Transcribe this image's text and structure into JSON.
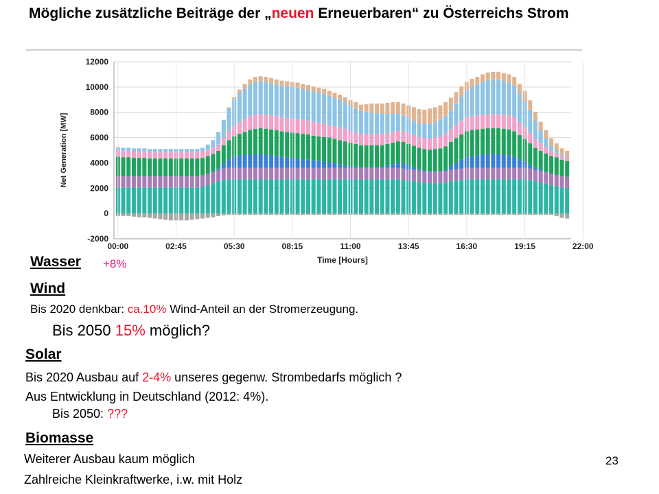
{
  "slide": {
    "title_parts": [
      "Mögliche zusätzliche Beiträge der „",
      "neuen",
      " Erneuerbaren“ zu Österreichs Strom"
    ],
    "page_number": "23"
  },
  "sections": {
    "wasser": {
      "heading": "Wasser",
      "note": "+8%"
    },
    "wind": {
      "heading": "Wind",
      "line1": [
        "Bis 2020 denkbar: ",
        "ca.10%",
        " Wind-Anteil an der Stromerzeugung."
      ],
      "line2": [
        "Bis 2050 ",
        "15%",
        " möglich?"
      ]
    },
    "solar": {
      "heading": "Solar",
      "line1": [
        "Bis 2020 Ausbau auf ",
        "2-4%",
        " unseres gegenw.  Strombedarfs möglich ?"
      ],
      "line2": "Aus Entwicklung in Deutschland (2012: 4%).",
      "line3": [
        "Bis 2050: ",
        "???"
      ]
    },
    "biomasse": {
      "heading": "Biomasse",
      "line1": "Weiterer Ausbau kaum möglich",
      "line2": "Zahlreiche Kleinkraftwerke, i.w. mit Holz"
    }
  },
  "colors": {
    "accent_red": "#e8132c",
    "accent_pink": "#e8137a"
  },
  "chart_data": {
    "type": "bar",
    "stacked": true,
    "xlabel": "Time [Hours]",
    "ylabel": "Net Generation [MW]",
    "ylim": [
      -2000,
      12000
    ],
    "yticks": [
      -2000,
      0,
      2000,
      4000,
      6000,
      8000,
      10000,
      12000
    ],
    "xtick_labels": [
      "00:00",
      "02:45",
      "05:30",
      "08:15",
      "11:00",
      "13:45",
      "16:30",
      "19:15",
      "22:00"
    ],
    "interval": "1/4 h",
    "grid": true,
    "legend": "none",
    "series": [
      {
        "color": "#2bb5a5",
        "values": [
          2050,
          2050,
          2050,
          2050,
          2050,
          2050,
          2050,
          2050,
          2050,
          2050,
          2050,
          2050,
          2050,
          2050,
          2050,
          2050,
          2100,
          2250,
          2400,
          2550,
          2650,
          2700,
          2700,
          2700,
          2700,
          2700,
          2700,
          2700,
          2700,
          2700,
          2700,
          2700,
          2700,
          2700,
          2700,
          2700,
          2700,
          2700,
          2700,
          2700,
          2700,
          2700,
          2700,
          2700,
          2700,
          2700,
          2700,
          2700,
          2700,
          2700,
          2700,
          2700,
          2700,
          2700,
          2650,
          2600,
          2550,
          2500,
          2450,
          2400,
          2400,
          2400,
          2450,
          2550,
          2600,
          2650,
          2700,
          2700,
          2700,
          2700,
          2700,
          2700,
          2700,
          2700,
          2700,
          2700,
          2700,
          2700,
          2650,
          2550,
          2450,
          2350,
          2250,
          2150,
          2050,
          2000
        ]
      },
      {
        "color": "#a87cb8",
        "values": [
          900,
          900,
          900,
          900,
          900,
          900,
          900,
          900,
          900,
          900,
          900,
          900,
          900,
          900,
          900,
          900,
          900,
          900,
          900,
          900,
          900,
          900,
          900,
          900,
          900,
          900,
          900,
          900,
          900,
          900,
          900,
          900,
          900,
          900,
          900,
          900,
          900,
          900,
          900,
          900,
          900,
          900,
          900,
          900,
          900,
          900,
          900,
          900,
          900,
          900,
          900,
          900,
          900,
          900,
          900,
          900,
          900,
          900,
          900,
          900,
          900,
          900,
          900,
          900,
          900,
          900,
          900,
          900,
          900,
          900,
          900,
          900,
          900,
          900,
          900,
          900,
          900,
          900,
          900,
          900,
          900,
          900,
          900,
          900,
          900,
          900
        ]
      },
      {
        "color": "#3a7fd4",
        "values": [
          0,
          0,
          0,
          0,
          0,
          0,
          0,
          0,
          0,
          0,
          0,
          0,
          0,
          0,
          0,
          0,
          0,
          0,
          0,
          100,
          400,
          700,
          900,
          1000,
          1050,
          1100,
          1100,
          1100,
          1050,
          1000,
          950,
          900,
          850,
          800,
          750,
          700,
          650,
          600,
          550,
          500,
          450,
          400,
          300,
          200,
          150,
          100,
          50,
          50,
          50,
          50,
          100,
          200,
          300,
          400,
          400,
          300,
          200,
          100,
          50,
          50,
          50,
          50,
          100,
          300,
          500,
          700,
          850,
          950,
          1000,
          1050,
          1100,
          1100,
          1100,
          1050,
          1000,
          900,
          700,
          500,
          300,
          150,
          100,
          50,
          0,
          0,
          0,
          0
        ]
      },
      {
        "color": "#1fa35c",
        "values": [
          1550,
          1500,
          1500,
          1450,
          1450,
          1450,
          1400,
          1400,
          1400,
          1400,
          1400,
          1400,
          1400,
          1400,
          1400,
          1400,
          1400,
          1400,
          1400,
          1400,
          1450,
          1500,
          1600,
          1700,
          1800,
          1900,
          2000,
          2050,
          2050,
          2050,
          2050,
          2000,
          2000,
          2000,
          2000,
          2000,
          2000,
          1950,
          1950,
          1950,
          1950,
          1900,
          1900,
          1900,
          1850,
          1800,
          1750,
          1750,
          1750,
          1750,
          1700,
          1700,
          1700,
          1700,
          1700,
          1700,
          1700,
          1700,
          1700,
          1700,
          1750,
          1800,
          1850,
          1900,
          1950,
          2000,
          2050,
          2050,
          2050,
          2050,
          2050,
          2050,
          2050,
          2050,
          2050,
          2000,
          1900,
          1800,
          1700,
          1600,
          1500,
          1450,
          1400,
          1400,
          1300,
          1250
        ]
      },
      {
        "color": "#f2a1c9",
        "values": [
          500,
          500,
          500,
          500,
          500,
          500,
          500,
          500,
          500,
          500,
          500,
          500,
          500,
          500,
          500,
          500,
          500,
          500,
          500,
          500,
          600,
          700,
          800,
          900,
          1000,
          1100,
          1100,
          1100,
          1100,
          1100,
          1100,
          1100,
          1100,
          1100,
          1100,
          1100,
          1100,
          1100,
          1050,
          1050,
          1000,
          1000,
          1000,
          1000,
          950,
          900,
          900,
          900,
          900,
          900,
          900,
          850,
          850,
          850,
          850,
          850,
          850,
          850,
          850,
          900,
          900,
          950,
          1000,
          1000,
          1050,
          1100,
          1100,
          1100,
          1100,
          1100,
          1100,
          1100,
          1100,
          1100,
          1100,
          1100,
          1000,
          900,
          800,
          700,
          600,
          500,
          400,
          350,
          300,
          250
        ]
      },
      {
        "color": "#8cc3e6",
        "values": [
          250,
          250,
          250,
          250,
          250,
          250,
          250,
          250,
          250,
          250,
          250,
          250,
          250,
          250,
          250,
          250,
          300,
          400,
          600,
          1000,
          1400,
          1800,
          2100,
          2300,
          2400,
          2500,
          2600,
          2600,
          2600,
          2550,
          2500,
          2500,
          2500,
          2500,
          2500,
          2450,
          2400,
          2400,
          2400,
          2350,
          2300,
          2250,
          2200,
          2100,
          2000,
          1900,
          1800,
          1750,
          1700,
          1650,
          1600,
          1550,
          1450,
          1350,
          1250,
          1200,
          1150,
          1100,
          1100,
          1150,
          1200,
          1300,
          1400,
          1500,
          1700,
          1900,
          2100,
          2300,
          2450,
          2600,
          2700,
          2750,
          2750,
          2700,
          2600,
          2500,
          2300,
          2100,
          1800,
          1400,
          1000,
          700,
          400,
          200,
          100,
          50
        ]
      },
      {
        "color": "#e0b490",
        "values": [
          0,
          0,
          0,
          0,
          0,
          0,
          0,
          0,
          0,
          0,
          0,
          0,
          0,
          0,
          0,
          0,
          0,
          0,
          0,
          0,
          0,
          100,
          200,
          300,
          400,
          400,
          400,
          400,
          400,
          400,
          400,
          400,
          400,
          400,
          400,
          400,
          400,
          400,
          400,
          400,
          400,
          400,
          400,
          400,
          400,
          500,
          500,
          600,
          700,
          750,
          800,
          850,
          900,
          900,
          950,
          1000,
          1050,
          1100,
          1150,
          1200,
          1200,
          1150,
          1100,
          1000,
          900,
          800,
          700,
          650,
          600,
          600,
          600,
          600,
          600,
          600,
          650,
          700,
          750,
          800,
          800,
          750,
          700,
          650,
          600,
          550,
          500,
          500
        ]
      },
      {
        "color": "#a6a6a6",
        "values": [
          -200,
          -200,
          -200,
          -250,
          -300,
          -300,
          -350,
          -400,
          -450,
          -500,
          -550,
          -550,
          -550,
          -550,
          -500,
          -450,
          -400,
          -350,
          -300,
          -200,
          -150,
          -100,
          -100,
          -100,
          -100,
          -100,
          -100,
          -100,
          -100,
          -100,
          -100,
          -100,
          -100,
          -100,
          -100,
          -100,
          -100,
          -100,
          -100,
          -100,
          -100,
          -100,
          -100,
          -100,
          -100,
          -100,
          -100,
          -100,
          -100,
          -100,
          -100,
          -100,
          -100,
          -100,
          -100,
          -100,
          -100,
          -100,
          -100,
          -100,
          -100,
          -100,
          -100,
          -100,
          -100,
          -100,
          -100,
          -100,
          -100,
          -100,
          -100,
          -100,
          -100,
          -100,
          -100,
          -100,
          -100,
          -100,
          -100,
          -100,
          -100,
          -100,
          -100,
          -200,
          -350,
          -400
        ]
      }
    ]
  }
}
